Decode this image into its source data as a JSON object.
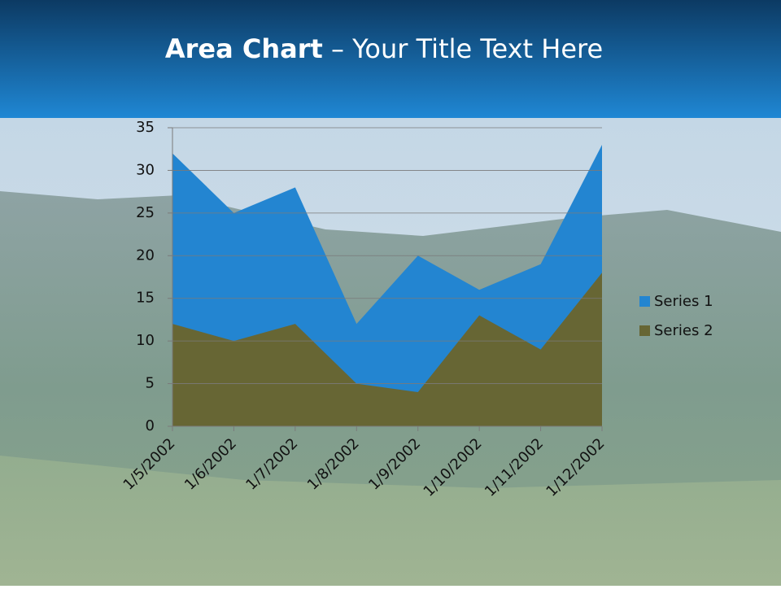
{
  "chart_data": {
    "type": "area",
    "title_parts": [
      "Area Chart",
      " – Your Title Text Here"
    ],
    "categories": [
      "1/5/2002",
      "1/6/2002",
      "1/7/2002",
      "1/8/2002",
      "1/9/2002",
      "1/10/2002",
      "1/11/2002",
      "1/12/2002"
    ],
    "series": [
      {
        "name": "Series 1",
        "color": "#2385d1",
        "values": [
          32,
          25,
          28,
          12,
          20,
          16,
          19,
          33
        ]
      },
      {
        "name": "Series 2",
        "color": "#676634",
        "values": [
          12,
          10,
          12,
          5,
          4,
          13,
          9,
          18
        ]
      }
    ],
    "ylim": [
      0,
      35
    ],
    "yticks": [
      0,
      5,
      10,
      15,
      20,
      25,
      30,
      35
    ],
    "grid": true,
    "legend": "right"
  }
}
